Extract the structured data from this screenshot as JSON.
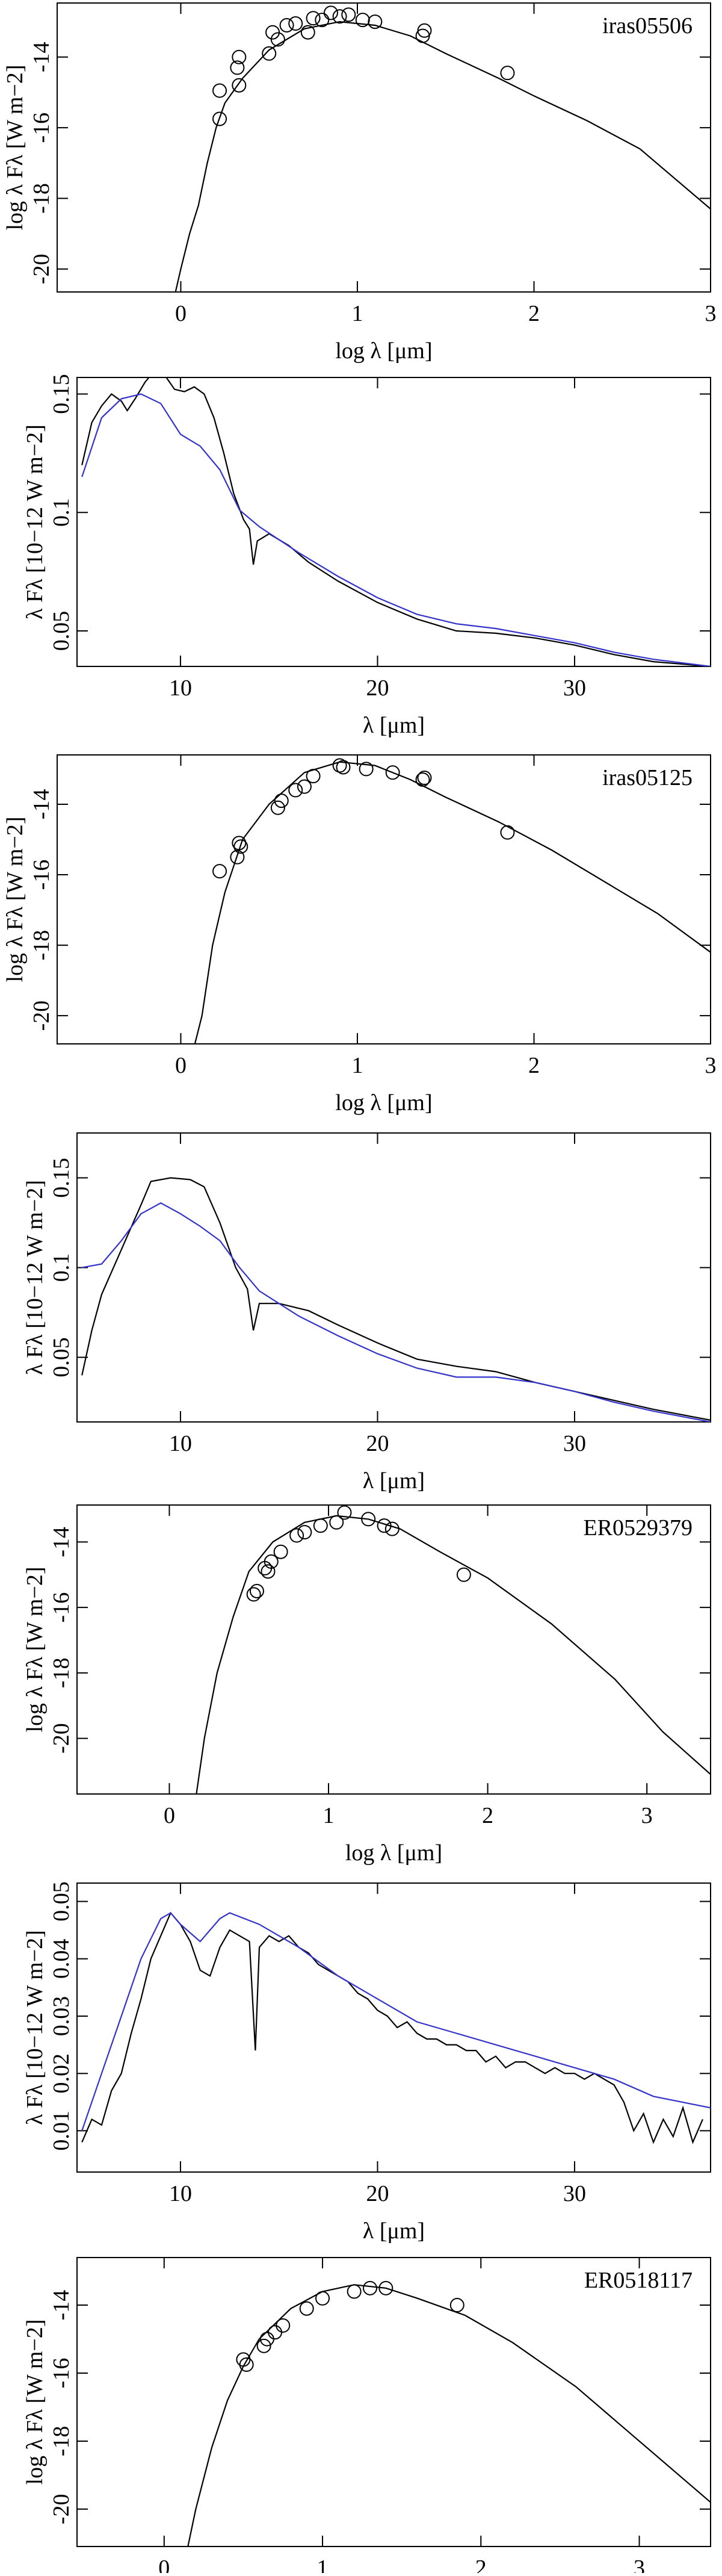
{
  "chart_data": [
    {
      "type": "line",
      "annotation": "iras05506",
      "xlabel": "log λ [μm]",
      "ylabel": "log λ Fλ [W m−2]",
      "xlim": [
        -0.7,
        3
      ],
      "xticks": [
        0,
        1,
        2,
        3
      ],
      "ylim": [
        -20.65,
        -12.47
      ],
      "yticks": [
        -20,
        -18,
        -16,
        -14
      ],
      "series": [
        {
          "color": "#000000",
          "x": [
            -0.03,
            0,
            0.05,
            0.1,
            0.15,
            0.2,
            0.25,
            0.35,
            0.5,
            0.7,
            0.9,
            1.1,
            1.3,
            1.5,
            1.8,
            2.0,
            2.3,
            2.6,
            3.0
          ],
          "values": [
            -20.65,
            -20.0,
            -19.0,
            -18.2,
            -17.0,
            -16.0,
            -15.3,
            -14.6,
            -13.8,
            -13.2,
            -13.0,
            -13.1,
            -13.4,
            -13.9,
            -14.6,
            -15.1,
            -15.8,
            -16.6,
            -18.3
          ]
        }
      ],
      "points": {
        "color": "#000000",
        "x": [
          0.22,
          0.22,
          0.32,
          0.33,
          0.33,
          0.5,
          0.52,
          0.55,
          0.6,
          0.65,
          0.72,
          0.75,
          0.8,
          0.85,
          0.9,
          0.95,
          1.03,
          1.1,
          1.38,
          1.37,
          1.85
        ],
        "values": [
          -14.95,
          -15.75,
          -14.3,
          -14.0,
          -14.8,
          -13.9,
          -13.3,
          -13.5,
          -13.1,
          -13.05,
          -13.3,
          -12.9,
          -12.95,
          -12.75,
          -12.85,
          -12.8,
          -12.95,
          -13.0,
          -13.25,
          -13.4,
          -14.45
        ]
      }
    },
    {
      "type": "line",
      "xlabel": "λ [μm]",
      "ylabel": "λ Fλ [10−12 W m−2]",
      "xlim": [
        4.75,
        36.9
      ],
      "xticks": [
        10,
        20,
        30
      ],
      "ylim": [
        0.035,
        0.157
      ],
      "yticks": [
        0.05,
        0.1,
        0.15
      ],
      "series": [
        {
          "color": "#000000",
          "x": [
            5,
            5.5,
            6,
            6.5,
            7,
            7.3,
            7.7,
            8.2,
            8.6,
            9.2,
            9.7,
            10.2,
            10.7,
            11.2,
            11.7,
            12.2,
            12.7,
            13.2,
            13.5,
            13.7,
            13.9,
            14.5,
            15.5,
            16.5,
            18,
            20,
            22,
            24,
            26,
            28,
            30,
            32,
            34,
            36.9
          ],
          "values": [
            0.12,
            0.138,
            0.145,
            0.15,
            0.147,
            0.143,
            0.148,
            0.155,
            0.159,
            0.158,
            0.152,
            0.151,
            0.153,
            0.15,
            0.14,
            0.125,
            0.108,
            0.097,
            0.093,
            0.078,
            0.088,
            0.091,
            0.086,
            0.079,
            0.071,
            0.062,
            0.055,
            0.05,
            0.049,
            0.047,
            0.044,
            0.04,
            0.037,
            0.035
          ]
        },
        {
          "color": "#3333cc",
          "x": [
            5,
            6,
            7,
            8,
            9,
            10,
            11,
            12,
            13,
            14,
            16,
            18,
            20,
            22,
            24,
            26,
            28,
            30,
            32,
            34,
            36.9
          ],
          "values": [
            0.115,
            0.14,
            0.148,
            0.15,
            0.146,
            0.133,
            0.128,
            0.118,
            0.101,
            0.094,
            0.083,
            0.073,
            0.064,
            0.057,
            0.053,
            0.051,
            0.048,
            0.045,
            0.041,
            0.038,
            0.035
          ]
        }
      ]
    },
    {
      "type": "line",
      "annotation": "iras05125",
      "xlabel": "log λ [μm]",
      "ylabel": "log λ Fλ [W m−2]",
      "xlim": [
        -0.7,
        3
      ],
      "xticks": [
        0,
        1,
        2,
        3
      ],
      "ylim": [
        -20.8,
        -12.6
      ],
      "yticks": [
        -20,
        -18,
        -16,
        -14
      ],
      "series": [
        {
          "color": "#000000",
          "x": [
            0.08,
            0.12,
            0.18,
            0.25,
            0.35,
            0.5,
            0.7,
            0.9,
            1.1,
            1.3,
            1.5,
            1.8,
            2.1,
            2.4,
            2.7,
            3.0
          ],
          "values": [
            -20.8,
            -20.0,
            -18.0,
            -16.5,
            -15.0,
            -14.0,
            -13.1,
            -12.8,
            -12.9,
            -13.3,
            -13.8,
            -14.5,
            -15.3,
            -16.2,
            -17.1,
            -18.2
          ]
        }
      ],
      "points": {
        "color": "#000000",
        "x": [
          0.22,
          0.32,
          0.33,
          0.34,
          0.55,
          0.57,
          0.65,
          0.7,
          0.75,
          0.9,
          0.92,
          1.05,
          1.2,
          1.37,
          1.38,
          1.85
        ],
        "values": [
          -15.9,
          -15.5,
          -15.1,
          -15.2,
          -14.1,
          -13.9,
          -13.6,
          -13.5,
          -13.2,
          -12.9,
          -12.95,
          -13.0,
          -13.1,
          -13.3,
          -13.25,
          -14.8
        ]
      }
    },
    {
      "type": "line",
      "xlabel": "λ [μm]",
      "ylabel": "λ Fλ [10−12 W m−2]",
      "xlim": [
        4.75,
        36.9
      ],
      "xticks": [
        10,
        20,
        30
      ],
      "ylim": [
        0.014,
        0.175
      ],
      "yticks": [
        0.05,
        0.1,
        0.15
      ],
      "series": [
        {
          "color": "#000000",
          "x": [
            5,
            5.5,
            6,
            7,
            8,
            8.5,
            9.5,
            10.5,
            11.2,
            12,
            12.8,
            13.4,
            13.7,
            14,
            15,
            16.5,
            18,
            20,
            22,
            24,
            26,
            28,
            30,
            32,
            34,
            36.9
          ],
          "values": [
            0.04,
            0.065,
            0.085,
            0.11,
            0.135,
            0.148,
            0.15,
            0.149,
            0.145,
            0.125,
            0.1,
            0.088,
            0.065,
            0.08,
            0.08,
            0.076,
            0.068,
            0.058,
            0.049,
            0.045,
            0.042,
            0.036,
            0.031,
            0.026,
            0.021,
            0.015
          ]
        },
        {
          "color": "#3333cc",
          "x": [
            5,
            6,
            7,
            8,
            9,
            10,
            11,
            12,
            13,
            14,
            16,
            18,
            20,
            22,
            24,
            26,
            28,
            30,
            32,
            34,
            36.9
          ],
          "values": [
            0.1,
            0.102,
            0.115,
            0.13,
            0.136,
            0.13,
            0.123,
            0.115,
            0.1,
            0.087,
            0.073,
            0.062,
            0.052,
            0.044,
            0.039,
            0.039,
            0.036,
            0.031,
            0.025,
            0.02,
            0.014
          ]
        }
      ]
    },
    {
      "type": "line",
      "annotation": "ER0529379",
      "xlabel": "log λ [μm]",
      "ylabel": "log λ Fλ [W m−2]",
      "xlim": [
        -0.58,
        3.4
      ],
      "xticks": [
        0,
        1,
        2,
        3
      ],
      "ylim": [
        -21.7,
        -12.87
      ],
      "yticks": [
        -20,
        -18,
        -16,
        -14
      ],
      "series": [
        {
          "color": "#000000",
          "x": [
            0.17,
            0.22,
            0.3,
            0.4,
            0.5,
            0.65,
            0.85,
            1.05,
            1.25,
            1.45,
            1.7,
            2.0,
            2.4,
            2.8,
            3.1,
            3.4
          ],
          "values": [
            -21.7,
            -20.0,
            -18.0,
            -16.3,
            -14.9,
            -14.0,
            -13.4,
            -13.2,
            -13.3,
            -13.6,
            -14.3,
            -15.1,
            -16.5,
            -18.2,
            -19.8,
            -21.1
          ]
        }
      ],
      "points": {
        "color": "#000000",
        "x": [
          0.53,
          0.55,
          0.6,
          0.62,
          0.64,
          0.7,
          0.8,
          0.85,
          0.95,
          1.05,
          1.1,
          1.25,
          1.35,
          1.4,
          1.85
        ],
        "values": [
          -15.6,
          -15.5,
          -14.8,
          -14.9,
          -14.6,
          -14.3,
          -13.8,
          -13.7,
          -13.5,
          -13.4,
          -13.1,
          -13.3,
          -13.5,
          -13.6,
          -15.0
        ]
      }
    },
    {
      "type": "line",
      "xlabel": "λ [μm]",
      "ylabel": "λ Fλ [10−12 W m−2]",
      "xlim": [
        4.75,
        36.9
      ],
      "xticks": [
        10,
        20,
        30
      ],
      "ylim": [
        0.0028,
        0.0532
      ],
      "yticks": [
        0.01,
        0.02,
        0.03,
        0.04,
        0.05
      ],
      "series": [
        {
          "color": "#000000",
          "x": [
            5,
            5.5,
            6,
            6.5,
            7,
            7.5,
            8,
            8.5,
            9,
            9.5,
            10,
            10.5,
            11,
            11.5,
            12,
            12.5,
            13,
            13.5,
            13.8,
            14,
            14.5,
            15,
            15.5,
            16,
            16.5,
            17,
            17.5,
            18,
            18.5,
            19,
            19.5,
            20,
            20.5,
            21,
            21.5,
            22,
            22.5,
            23,
            23.5,
            24,
            24.5,
            25,
            25.5,
            26,
            26.5,
            27,
            27.5,
            28,
            28.5,
            29,
            29.5,
            30,
            30.5,
            31,
            31.5,
            32,
            32.5,
            33,
            33.5,
            34,
            34.5,
            35,
            35.5,
            36,
            36.5
          ],
          "values": [
            0.008,
            0.012,
            0.011,
            0.017,
            0.02,
            0.027,
            0.033,
            0.04,
            0.044,
            0.048,
            0.046,
            0.043,
            0.038,
            0.037,
            0.042,
            0.045,
            0.044,
            0.043,
            0.024,
            0.042,
            0.044,
            0.043,
            0.044,
            0.042,
            0.041,
            0.039,
            0.038,
            0.037,
            0.036,
            0.034,
            0.033,
            0.031,
            0.03,
            0.028,
            0.029,
            0.027,
            0.026,
            0.026,
            0.025,
            0.025,
            0.024,
            0.024,
            0.022,
            0.023,
            0.021,
            0.022,
            0.022,
            0.021,
            0.02,
            0.021,
            0.02,
            0.02,
            0.019,
            0.02,
            0.019,
            0.018,
            0.015,
            0.01,
            0.013,
            0.008,
            0.012,
            0.009,
            0.014,
            0.008,
            0.012
          ]
        },
        {
          "color": "#3333cc",
          "x": [
            5,
            6,
            7,
            8,
            9,
            9.5,
            10,
            11,
            12,
            12.5,
            14,
            16,
            18,
            20,
            22,
            24,
            26,
            28,
            30,
            32,
            34,
            36.9
          ],
          "values": [
            0.01,
            0.02,
            0.03,
            0.04,
            0.047,
            0.048,
            0.046,
            0.043,
            0.047,
            0.048,
            0.046,
            0.042,
            0.037,
            0.033,
            0.029,
            0.027,
            0.025,
            0.023,
            0.021,
            0.019,
            0.016,
            0.014
          ]
        }
      ]
    },
    {
      "type": "line",
      "annotation": "ER0518117",
      "ylabel": "log λ Fλ [W m−2]",
      "xlim": [
        -0.55,
        3.45
      ],
      "xticks": [
        0,
        1,
        2,
        3
      ],
      "ylim": [
        -21.1,
        -12.6
      ],
      "yticks": [
        -20,
        -18,
        -16,
        -14
      ],
      "series": [
        {
          "color": "#000000",
          "x": [
            0.15,
            0.2,
            0.3,
            0.4,
            0.5,
            0.6,
            0.8,
            1.0,
            1.2,
            1.4,
            1.6,
            1.9,
            2.2,
            2.6,
            3.0,
            3.45
          ],
          "values": [
            -21.1,
            -20.0,
            -18.2,
            -16.8,
            -15.8,
            -15.0,
            -14.1,
            -13.6,
            -13.4,
            -13.5,
            -13.8,
            -14.3,
            -15.1,
            -16.4,
            -18.0,
            -19.8
          ]
        }
      ],
      "points": {
        "color": "#000000",
        "x": [
          0.5,
          0.52,
          0.63,
          0.65,
          0.7,
          0.75,
          0.9,
          1.0,
          1.2,
          1.3,
          1.4,
          1.85
        ],
        "values": [
          -15.6,
          -15.75,
          -15.2,
          -15.0,
          -14.8,
          -14.6,
          -14.1,
          -13.8,
          -13.6,
          -13.5,
          -13.5,
          -14.0
        ]
      }
    }
  ]
}
